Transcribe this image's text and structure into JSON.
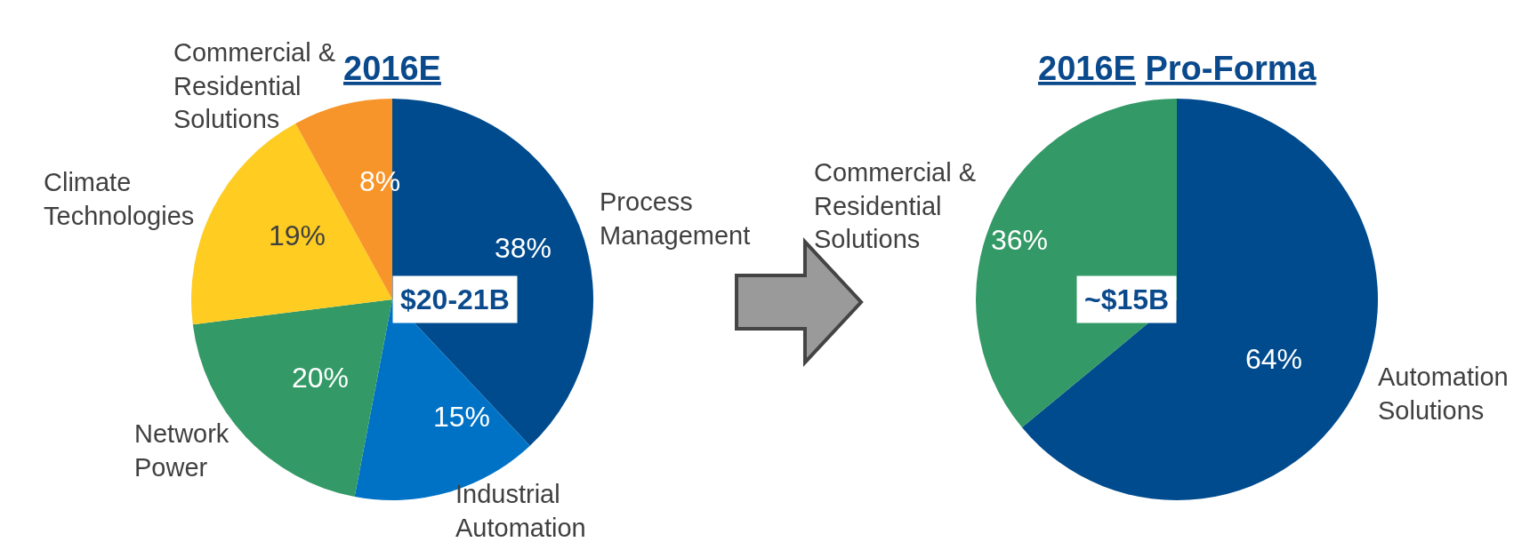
{
  "chart_data": [
    {
      "type": "pie",
      "title": "2016E",
      "categories": [
        "Process\nManagement",
        "Industrial\nAutomation",
        "Network\nPower",
        "Climate\nTechnologies",
        "Commercial &\nResidential\nSolutions"
      ],
      "values": [
        38,
        15,
        20,
        19,
        8
      ],
      "colors": [
        "#004b8d",
        "#0072c6",
        "#339966",
        "#ffcc22",
        "#f7952a"
      ],
      "value_labels": [
        "38%",
        "15%",
        "20%",
        "19%",
        "8%"
      ],
      "annotations": [
        "$20-21B"
      ]
    },
    {
      "type": "pie",
      "title": "2016E Pro-Forma",
      "categories": [
        "Automation\nSolutions",
        "Commercial &\nResidential\nSolutions"
      ],
      "values": [
        64,
        36
      ],
      "colors": [
        "#004b8d",
        "#339966"
      ],
      "value_labels": [
        "64%",
        "36%"
      ],
      "annotations": [
        "~$15B"
      ]
    }
  ]
}
